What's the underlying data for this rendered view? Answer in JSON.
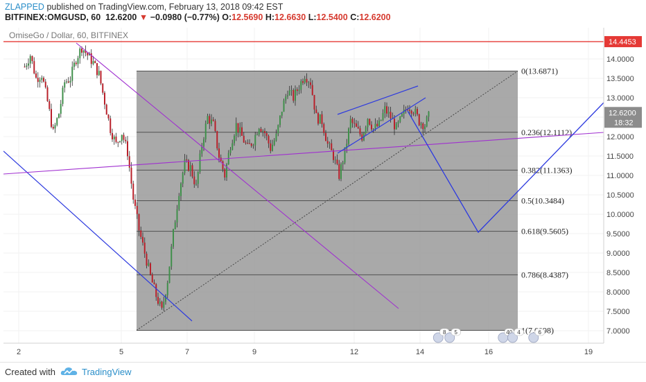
{
  "header": {
    "user": "ZLAPPED",
    "published_text": " published on TradingView.com, February 13, 2018 09:42 EST",
    "symbol": "BITFINEX:OMGUSD, 60",
    "price": "12.6200",
    "arrow": "▼",
    "change": "−0.0980 (−0.77%)",
    "o_label": "O:",
    "o_value": "12.5690",
    "h_label": "H:",
    "h_value": "12.6630",
    "l_label": "L:",
    "l_value": "12.5400",
    "c_label": "C:",
    "c_value": "12.6200"
  },
  "chart_data": {
    "type": "line",
    "title": "OmiseGo / Dollar, 60, BITFINEX",
    "x_ticks": [
      "2",
      "5",
      "7",
      "9",
      "12",
      "14",
      "16",
      "19"
    ],
    "y_ticks": [
      "14.0000",
      "13.5000",
      "13.0000",
      "12.5000",
      "12.0000",
      "11.5000",
      "11.0000",
      "10.5000",
      "10.0000",
      "9.5000",
      "9.0000",
      "8.5000",
      "8.0000",
      "7.5000",
      "7.0000"
    ],
    "ylim": [
      6.75,
      15.0
    ],
    "price_label": "12.6200",
    "countdown_label": "18:32",
    "resistance_label": "14.4453",
    "resistance_value": 14.4453,
    "fib_levels": [
      {
        "label": "0(13.6871)",
        "value": 13.6871
      },
      {
        "label": "0.236(12.1112)",
        "value": 12.1112
      },
      {
        "label": "0.382(11.1363)",
        "value": 11.1363
      },
      {
        "label": "0.5(10.3484)",
        "value": 10.3484
      },
      {
        "label": "0.618(9.5605)",
        "value": 9.5605
      },
      {
        "label": "0.786(8.4387)",
        "value": 8.4387
      },
      {
        "label": "1(7.0098)",
        "value": 7.0098
      }
    ],
    "candles_path": [
      [
        1.0,
        13.8
      ],
      [
        1.3,
        14.1
      ],
      [
        1.6,
        13.5
      ],
      [
        1.9,
        13.6
      ],
      [
        2.2,
        12.9
      ],
      [
        2.5,
        12.1
      ],
      [
        2.8,
        12.6
      ],
      [
        3.1,
        13.4
      ],
      [
        3.4,
        13.5
      ],
      [
        3.7,
        14.0
      ],
      [
        4.0,
        14.3
      ],
      [
        4.3,
        14.1
      ],
      [
        4.6,
        13.9
      ],
      [
        4.9,
        13.6
      ],
      [
        5.2,
        12.9
      ],
      [
        5.5,
        12.2
      ],
      [
        5.8,
        11.8
      ],
      [
        6.1,
        12.1
      ],
      [
        6.4,
        11.6
      ],
      [
        6.7,
        10.4
      ],
      [
        7.0,
        9.6
      ],
      [
        7.3,
        9.0
      ],
      [
        7.6,
        8.4
      ],
      [
        7.9,
        7.9
      ],
      [
        8.2,
        7.5
      ],
      [
        8.5,
        8.3
      ],
      [
        8.8,
        9.5
      ],
      [
        9.1,
        10.6
      ],
      [
        9.4,
        11.3
      ],
      [
        9.7,
        11.2
      ],
      [
        10.0,
        10.7
      ],
      [
        10.3,
        11.8
      ],
      [
        10.6,
        12.5
      ],
      [
        10.9,
        12.3
      ],
      [
        11.2,
        11.5
      ],
      [
        11.5,
        11.0
      ],
      [
        11.8,
        11.8
      ],
      [
        12.1,
        12.3
      ],
      [
        12.4,
        12.0
      ],
      [
        12.7,
        11.7
      ],
      [
        13.0,
        11.9
      ],
      [
        13.3,
        12.3
      ],
      [
        13.6,
        12.1
      ],
      [
        13.9,
        11.7
      ],
      [
        14.2,
        12.0
      ],
      [
        14.5,
        12.7
      ],
      [
        14.8,
        13.2
      ],
      [
        15.1,
        13.0
      ],
      [
        15.4,
        13.3
      ],
      [
        15.7,
        13.6
      ],
      [
        16.0,
        13.4
      ],
      [
        16.3,
        12.5
      ],
      [
        16.6,
        12.4
      ],
      [
        16.9,
        11.8
      ],
      [
        17.2,
        11.5
      ],
      [
        17.5,
        11.0
      ],
      [
        17.8,
        11.6
      ],
      [
        18.1,
        12.4
      ],
      [
        18.4,
        12.2
      ],
      [
        18.7,
        12.0
      ],
      [
        19.0,
        12.5
      ],
      [
        19.3,
        12.2
      ],
      [
        19.6,
        12.3
      ],
      [
        19.9,
        12.7
      ],
      [
        20.2,
        12.5
      ],
      [
        20.5,
        12.2
      ],
      [
        20.8,
        12.5
      ],
      [
        21.1,
        12.8
      ],
      [
        21.4,
        12.7
      ],
      [
        21.7,
        12.4
      ],
      [
        22.0,
        12.3
      ],
      [
        22.3,
        12.62
      ]
    ],
    "events": [
      {
        "label": "8",
        "x": 22.7
      },
      {
        "label": "5",
        "x": 23.3
      },
      {
        "label": "40",
        "x": 26.1
      },
      {
        "label": "4",
        "x": 26.6
      },
      {
        "label": "6",
        "x": 27.7
      }
    ]
  },
  "footer": {
    "created_with": "Created with",
    "brand": "TradingView"
  },
  "colors": {
    "fib_box": "#a0a0a0",
    "candle_up": "#3f8f4a",
    "candle_down": "#b8202a",
    "resistance": "#e53935",
    "blue_line": "#2d3adf",
    "purple_line": "#a030d0",
    "price_tag": "#8c8c8c",
    "brand": "#2a8ec9"
  }
}
